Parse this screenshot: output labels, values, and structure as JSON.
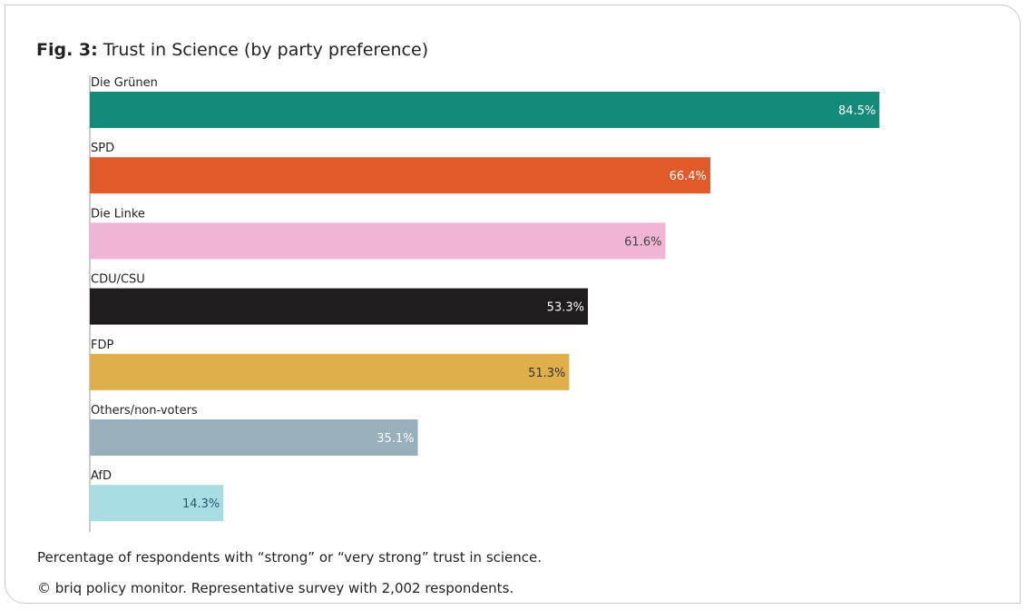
{
  "figure": {
    "number": "Fig. 3:",
    "title": "Trust in Science (by party preference)"
  },
  "footnotes": {
    "note": "Percentage of respondents with “strong” or “very strong” trust in science.",
    "source": "© briq policy monitor. Representative survey with 2,002 respondents."
  },
  "colors": {
    "border": "#c8c8c8",
    "axis": "#9a9a9a"
  },
  "chart_data": {
    "type": "bar",
    "orientation": "horizontal",
    "title": "Trust in Science (by party preference)",
    "xlim": [
      0,
      100
    ],
    "grid": false,
    "categories": [
      "Die Grünen",
      "SPD",
      "Die Linke",
      "CDU/CSU",
      "FDP",
      "Others/non-voters",
      "AfD"
    ],
    "values": [
      84.5,
      66.4,
      61.6,
      53.3,
      51.3,
      35.1,
      14.3
    ],
    "value_labels": [
      "84.5%",
      "66.4%",
      "61.6%",
      "53.3%",
      "51.3%",
      "35.1%",
      "14.3%"
    ],
    "bar_colors": [
      "#138a7a",
      "#e05a2a",
      "#f0b5d4",
      "#1f1d1e",
      "#dfb04a",
      "#97b0bb",
      "#a8dde4"
    ],
    "label_colors": [
      "#ffffff",
      "#ffffff",
      "#444444",
      "#ffffff",
      "#333333",
      "#ffffff",
      "#2a5a6a"
    ]
  }
}
